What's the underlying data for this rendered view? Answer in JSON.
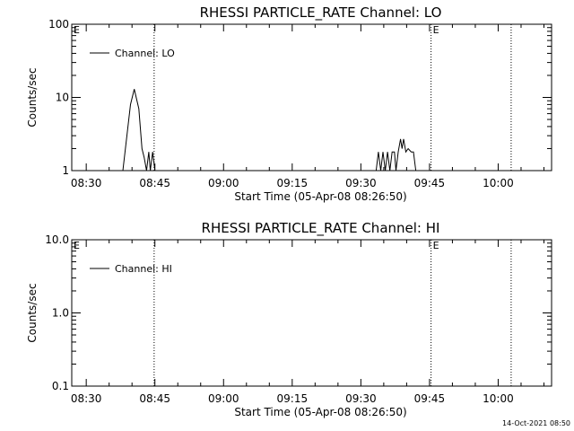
{
  "chart_data": [
    {
      "type": "line",
      "title": "RHESSI PARTICLE_RATE Channel: LO",
      "xlabel": "Start Time (05-Apr-08 08:26:50)",
      "ylabel": "Counts/sec",
      "x_ticks": [
        "08:30",
        "08:45",
        "09:00",
        "09:15",
        "09:30",
        "09:45",
        "10:00"
      ],
      "y_ticks": [
        "1",
        "10",
        "100"
      ],
      "y_scale": "log",
      "ylim": [
        1,
        100
      ],
      "xlim": [
        "08:26:50",
        "10:11:40"
      ],
      "legend": {
        "label": "Channel: LO",
        "placement": "top-left"
      },
      "markers": [
        {
          "time": "08:44:50",
          "label": ""
        },
        {
          "time": "09:45:20",
          "label": "E"
        },
        {
          "time": "10:02:50",
          "label": ""
        }
      ],
      "start_marker_label": "E",
      "series": [
        {
          "name": "Channel: LO",
          "points": [
            [
              "08:38:00",
              1
            ],
            [
              "08:39:40",
              8
            ],
            [
              "08:40:30",
              13
            ],
            [
              "08:41:30",
              7
            ],
            [
              "08:42:10",
              2
            ],
            [
              "08:42:40",
              1.5
            ],
            [
              "08:43:10",
              1
            ],
            [
              "08:43:40",
              1.8
            ],
            [
              "08:44:00",
              1
            ],
            [
              "08:44:30",
              1.8
            ],
            [
              "08:45:00",
              1
            ],
            [
              "09:33:20",
              1
            ],
            [
              "09:33:50",
              1.8
            ],
            [
              "09:34:20",
              1
            ],
            [
              "09:34:50",
              1.8
            ],
            [
              "09:35:20",
              1
            ],
            [
              "09:35:50",
              1.8
            ],
            [
              "09:36:20",
              1
            ],
            [
              "09:36:50",
              1.8
            ],
            [
              "09:37:20",
              1.8
            ],
            [
              "09:37:40",
              1
            ],
            [
              "09:38:10",
              1.8
            ],
            [
              "09:38:40",
              2.7
            ],
            [
              "09:39:00",
              2.0
            ],
            [
              "09:39:20",
              2.7
            ],
            [
              "09:39:50",
              1.8
            ],
            [
              "09:40:20",
              2.0
            ],
            [
              "09:41:00",
              1.8
            ],
            [
              "09:41:30",
              1.8
            ],
            [
              "09:42:00",
              1
            ]
          ]
        }
      ]
    },
    {
      "type": "line",
      "title": "RHESSI PARTICLE_RATE Channel: HI",
      "xlabel": "Start Time (05-Apr-08 08:26:50)",
      "ylabel": "Counts/sec",
      "x_ticks": [
        "08:30",
        "08:45",
        "09:00",
        "09:15",
        "09:30",
        "09:45",
        "10:00"
      ],
      "y_ticks": [
        "0.1",
        "1.0",
        "10.0"
      ],
      "y_scale": "log",
      "ylim": [
        0.1,
        10
      ],
      "xlim": [
        "08:26:50",
        "10:11:40"
      ],
      "legend": {
        "label": "Channel: HI",
        "placement": "top-left"
      },
      "markers": [
        {
          "time": "08:44:50",
          "label": ""
        },
        {
          "time": "09:45:20",
          "label": "E"
        },
        {
          "time": "10:02:50",
          "label": ""
        }
      ],
      "start_marker_label": "E",
      "series": [
        {
          "name": "Channel: HI",
          "points": []
        }
      ]
    }
  ],
  "timestamp": "14-Oct-2021 08:50"
}
